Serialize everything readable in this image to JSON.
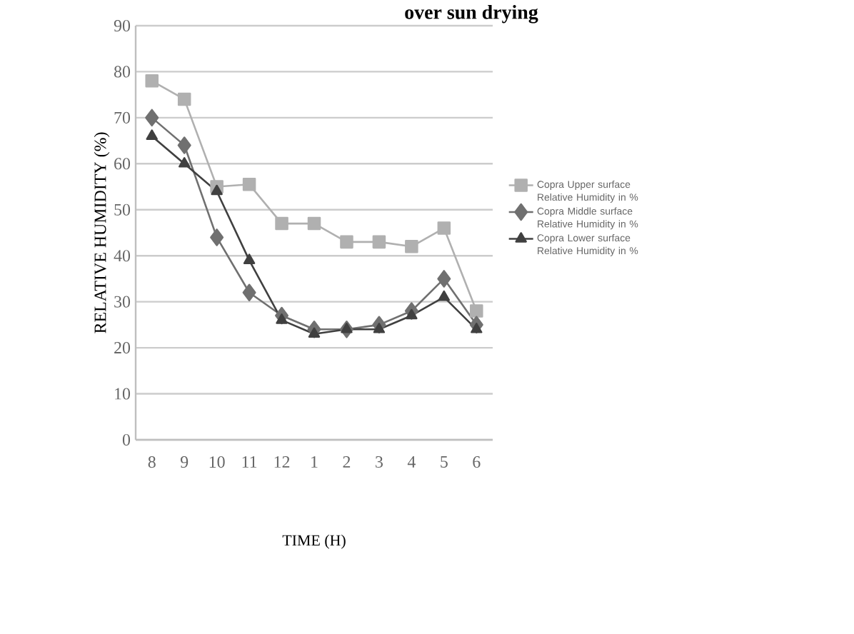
{
  "chart_data": {
    "type": "line",
    "title": "over sun drying",
    "xlabel": "TIME (H)",
    "ylabel": "RELATIVE HUMIDITY  (%)",
    "categories": [
      "8",
      "9",
      "10",
      "11",
      "12",
      "1",
      "2",
      "3",
      "4",
      "5",
      "6"
    ],
    "series": [
      {
        "name": "Copra Upper surface Relative Humidity in %",
        "color": "#b0b0b0",
        "marker": "square",
        "values": [
          78,
          74,
          55,
          55.5,
          47,
          47,
          43,
          43,
          42,
          46,
          28
        ]
      },
      {
        "name": "Copra Middle surface Relative Humidity in %",
        "color": "#707070",
        "marker": "diamond",
        "values": [
          70,
          64,
          44,
          32,
          27,
          24,
          24,
          25,
          28,
          35,
          25
        ]
      },
      {
        "name": "Copra Lower surface Relative Humidity in %",
        "color": "#404040",
        "marker": "triangle",
        "values": [
          66,
          60,
          54,
          39,
          26,
          23,
          24,
          24,
          27,
          31,
          24
        ]
      }
    ],
    "ylim": [
      0,
      90
    ],
    "yticks": [
      0,
      10,
      20,
      30,
      40,
      50,
      60,
      70,
      80,
      90
    ],
    "grid": "y",
    "legend": "right",
    "line_style": "solid"
  }
}
